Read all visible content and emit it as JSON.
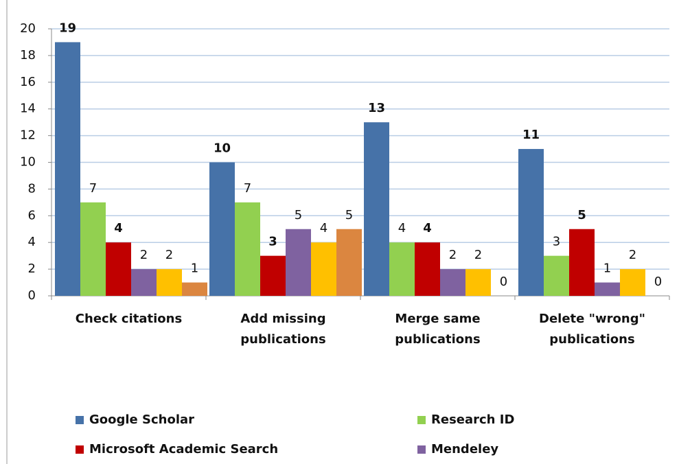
{
  "chart_data": {
    "type": "bar",
    "categories": [
      "Check citations",
      "Add missing publications",
      "Merge same publications",
      "Delete \"wrong\" publications"
    ],
    "series": [
      {
        "name": "Google Scholar",
        "color": "#4672a8",
        "values": [
          19,
          10,
          13,
          11
        ],
        "label_bold": true
      },
      {
        "name": "Research ID",
        "color": "#92d050",
        "values": [
          7,
          7,
          4,
          3
        ]
      },
      {
        "name": "Microsoft Academic Search",
        "color": "#c00000",
        "values": [
          4,
          3,
          4,
          5
        ],
        "label_bold": true
      },
      {
        "name": "Mendeley",
        "color": "#7f62a0",
        "values": [
          2,
          5,
          2,
          1
        ]
      },
      {
        "color": "#ffc000",
        "values": [
          2,
          4,
          2,
          2
        ]
      },
      {
        "color": "#db8640",
        "values": [
          1,
          5,
          0,
          0
        ]
      }
    ],
    "ylim": [
      0,
      20
    ],
    "yticks": [
      0,
      2,
      4,
      6,
      8,
      10,
      12,
      14,
      16,
      18,
      20
    ],
    "grid": true
  }
}
